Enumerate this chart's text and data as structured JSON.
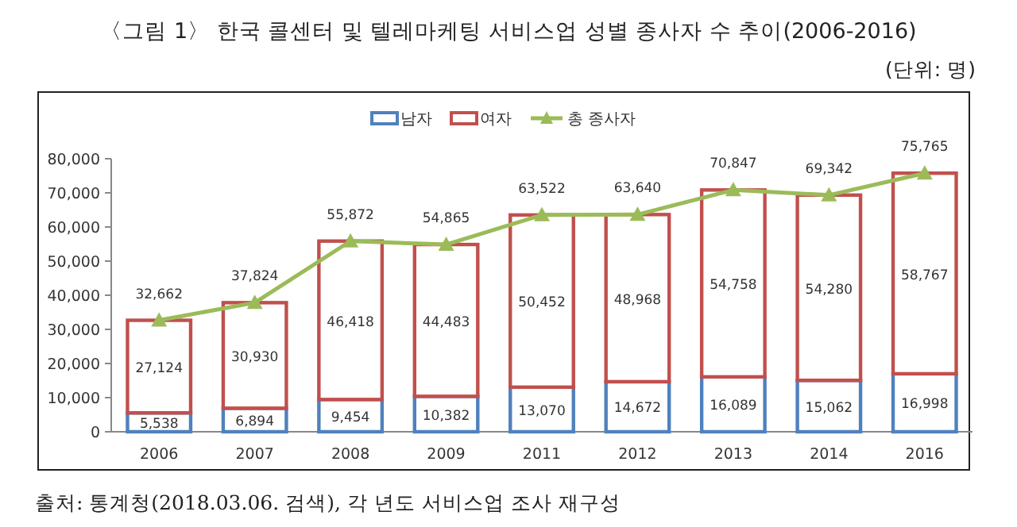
{
  "chart_data": {
    "type": "bar",
    "stacked": true,
    "title": "〈그림 1〉 한국 콜센터 및 텔레마케팅 서비스업 성별 종사자 수 추이(2006-2016)",
    "annotations": [
      "(단위: 명)",
      "출처: 통계청(2018.03.06. 검색), 각 년도 서비스업 조사 재구성"
    ],
    "categories": [
      "2006",
      "2007",
      "2008",
      "2009",
      "2011",
      "2012",
      "2013",
      "2014",
      "2016"
    ],
    "series": [
      {
        "name": "남자",
        "color": "#4f81bd",
        "values": [
          5538,
          6894,
          9454,
          10382,
          13070,
          14672,
          16089,
          15062,
          16998
        ],
        "value_labels": [
          "5,538",
          "6,894",
          "9,454",
          "10,382",
          "13,070",
          "14,672",
          "16,089",
          "15,062",
          "16,998"
        ]
      },
      {
        "name": "여자",
        "color": "#c0504d",
        "values": [
          27124,
          30930,
          46418,
          44483,
          50452,
          48968,
          54758,
          54280,
          58767
        ],
        "value_labels": [
          "27,124",
          "30,930",
          "46,418",
          "44,483",
          "50,452",
          "48,968",
          "54,758",
          "54,280",
          "58,767"
        ]
      },
      {
        "name": "총 종사자",
        "type": "line",
        "marker": "triangle",
        "color": "#9bbb59",
        "values": [
          32662,
          37824,
          55872,
          54865,
          63522,
          63640,
          70847,
          69342,
          75765
        ],
        "value_labels": [
          "32,662",
          "37,824",
          "55,872",
          "54,865",
          "63,522",
          "63,640",
          "70,847",
          "69,342",
          "75,765"
        ]
      }
    ],
    "ylim": [
      0,
      80000
    ],
    "yticks": [
      {
        "value": 0,
        "label": "0"
      },
      {
        "value": 10000,
        "label": "10,000"
      },
      {
        "value": 20000,
        "label": "20,000"
      },
      {
        "value": 30000,
        "label": "30,000"
      },
      {
        "value": 40000,
        "label": "40,000"
      },
      {
        "value": 50000,
        "label": "50,000"
      },
      {
        "value": 60000,
        "label": "60,000"
      },
      {
        "value": 70000,
        "label": "70,000"
      },
      {
        "value": 80000,
        "label": "80,000"
      }
    ],
    "grid": false,
    "legend": "top"
  }
}
